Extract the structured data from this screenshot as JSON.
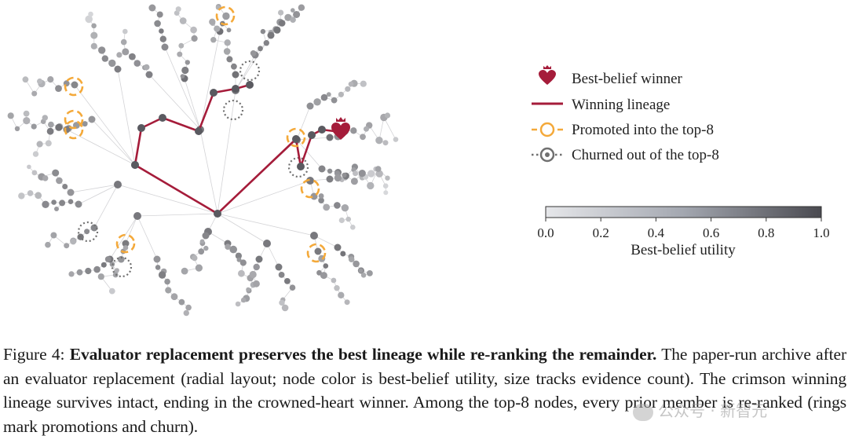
{
  "legend": {
    "winner": "Best-belief winner",
    "lineage": "Winning lineage",
    "promoted": "Promoted into the top-8",
    "churned": "Churned out of the top-8"
  },
  "colorbar": {
    "label": "Best-belief utility",
    "ticks": [
      "0.0",
      "0.2",
      "0.4",
      "0.6",
      "0.8",
      "1.0"
    ],
    "range": [
      0.0,
      1.0
    ]
  },
  "colors": {
    "lineage": "#a51c3a",
    "promoted": "#f4a93a",
    "churned": "#707070",
    "node_low": "#e4e5e8",
    "node_high": "#545459"
  },
  "caption": {
    "label": "Figure 4:",
    "title": "Evaluator replacement preserves the best lineage while re-ranking the remainder.",
    "body": "The paper-run archive after an evaluator replacement (radial layout; node color is best-belief utility, size tracks evidence count). The crimson winning lineage survives intact, ending in the crowned-heart winner. Among the top-8 nodes, every prior member is re-ranked (rings mark promotions and churn)."
  },
  "watermark": "公众号 · 新智元"
}
